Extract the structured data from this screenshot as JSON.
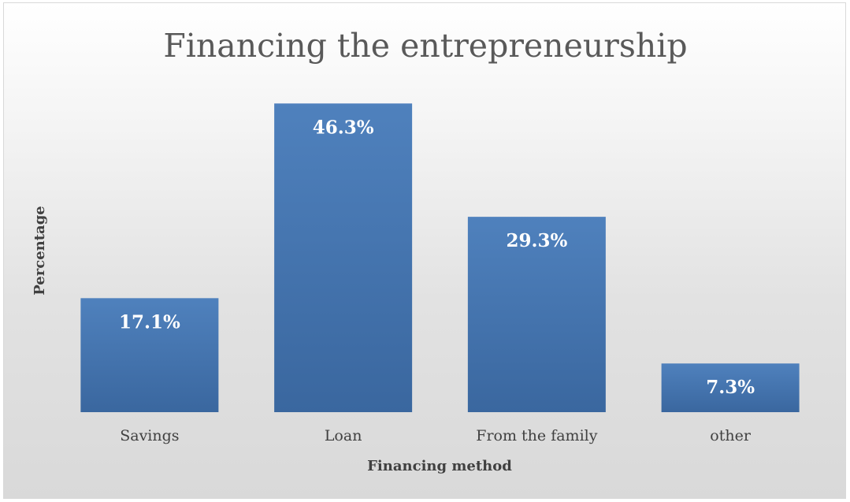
{
  "chart_data": {
    "type": "bar",
    "title": "Financing the entrepreneurship",
    "xlabel": "Financing method",
    "ylabel": "Percentage",
    "categories": [
      "Savings",
      "Loan",
      "From the family",
      "other"
    ],
    "values": [
      17.1,
      46.3,
      29.3,
      7.3
    ],
    "data_labels": [
      "17.1%",
      "46.3%",
      "29.3%",
      "7.3%"
    ],
    "value_unit": "%",
    "ylim": [
      0,
      50
    ],
    "grid": false,
    "legend": "none",
    "colors": {
      "bar_top": "#4f81bd",
      "bar_bottom": "#3a679f",
      "data_label": "#ffffff"
    }
  }
}
